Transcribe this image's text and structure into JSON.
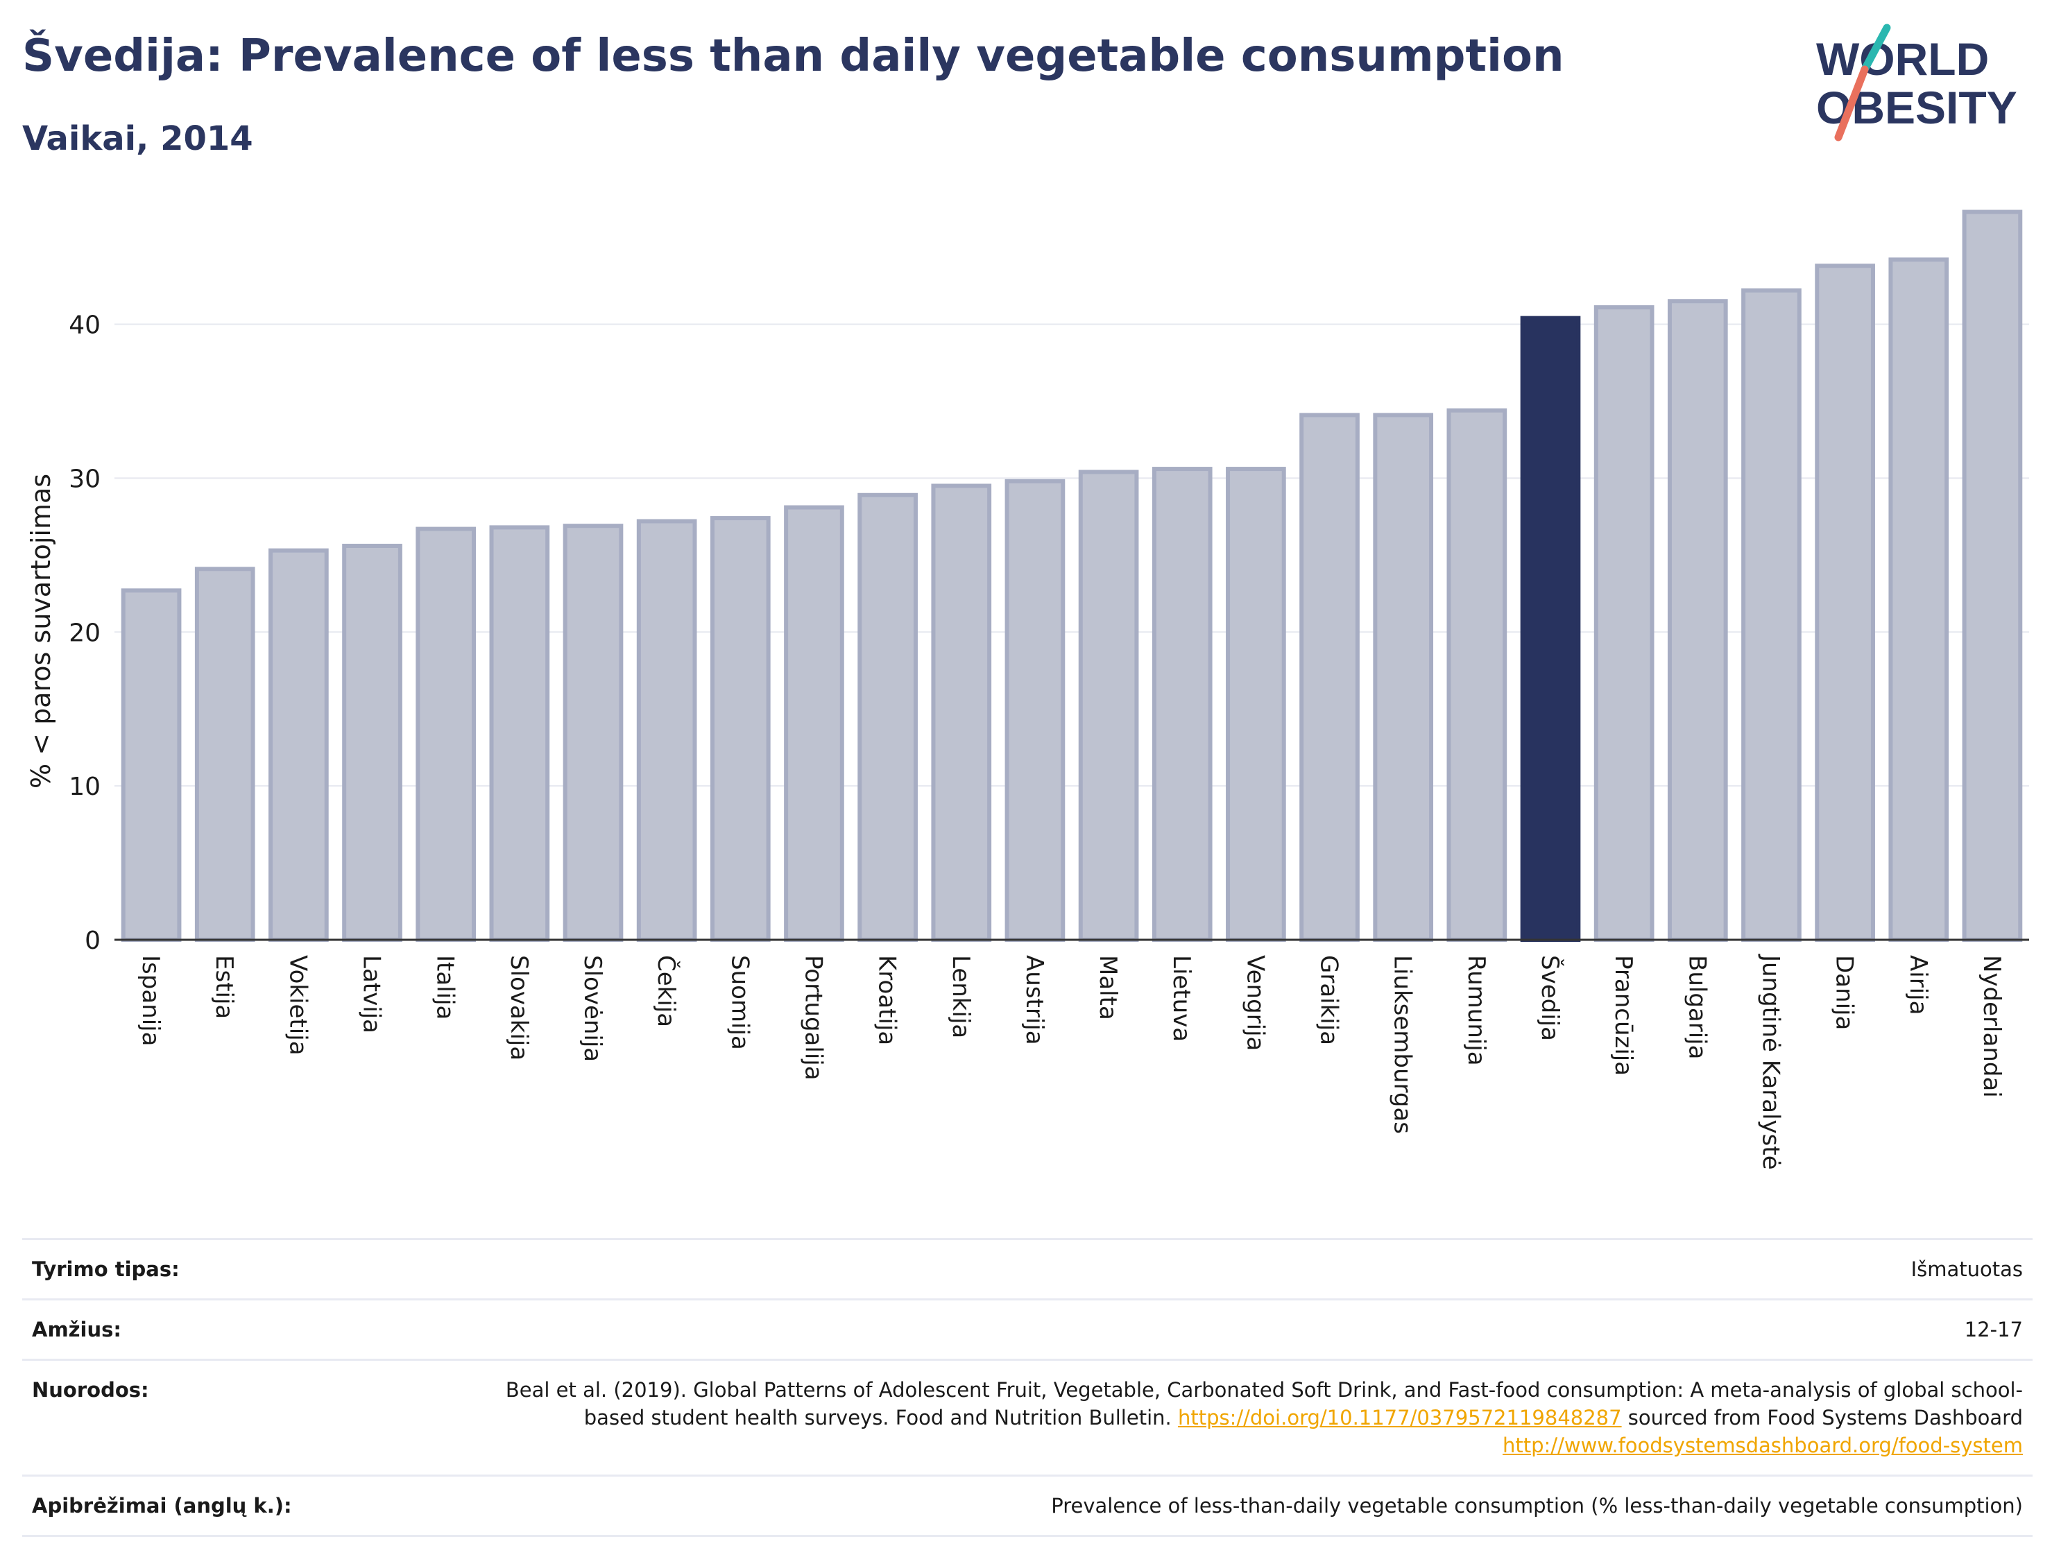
{
  "header": {
    "title": "Švedija: Prevalence of less than daily vegetable consumption",
    "subtitle": "Vaikai, 2014"
  },
  "logo": {
    "line1": "WORLD",
    "line2": "OBESITY"
  },
  "colors": {
    "highlight_bar": "#28335f",
    "other_bar_fill": "#bec2d0",
    "other_bar_stroke": "#a7adc3",
    "accent_teal": "#2ab7b0",
    "accent_coral": "#e9705d",
    "link": "#f0a500"
  },
  "chart_data": {
    "type": "bar",
    "title": "Švedija: Prevalence of less than daily vegetable consumption",
    "subtitle": "Vaikai, 2014",
    "xlabel": "",
    "ylabel": "% < paros suvartojimas",
    "ylim": [
      0,
      48
    ],
    "yticks": [
      0,
      10,
      20,
      30,
      40
    ],
    "grid": true,
    "highlight": "Švedija",
    "categories": [
      "Ispanija",
      "Estija",
      "Vokietija",
      "Latvija",
      "Italija",
      "Slovakija",
      "Slovėnija",
      "Čekija",
      "Suomija",
      "Portugalija",
      "Kroatija",
      "Lenkija",
      "Austrija",
      "Malta",
      "Lietuva",
      "Vengrija",
      "Graikija",
      "Liuksemburgas",
      "Rumunija",
      "Švedija",
      "Prancūzija",
      "Bulgarija",
      "Jungtinė Karalystė",
      "Danija",
      "Airija",
      "Nyderlandai"
    ],
    "values": [
      22.7,
      24.1,
      25.3,
      25.6,
      26.7,
      26.8,
      26.9,
      27.2,
      27.4,
      28.1,
      28.9,
      29.5,
      29.8,
      30.4,
      30.6,
      30.6,
      34.1,
      34.1,
      34.4,
      40.4,
      41.1,
      41.5,
      42.2,
      43.8,
      44.2,
      47.3
    ]
  },
  "info": [
    {
      "label": "Tyrimo tipas:",
      "value": "Išmatuotas"
    },
    {
      "label": "Amžius:",
      "value": "12-17"
    },
    {
      "label": "Nuorodos:",
      "value_part1": "Beal et al. (2019). Global Patterns of Adolescent Fruit, Vegetable, Carbonated Soft Drink, and Fast-food consumption: A meta-analysis of global school-based student health surveys. Food and Nutrition Bulletin.",
      "link1": "https://doi.org/10.1177/0379572119848287",
      "value_part2": "sourced from Food Systems Dashboard",
      "link2": "http://www.foodsystemsdashboard.org/food-system"
    },
    {
      "label": "Apibrėžimai (anglų k.):",
      "value": "Prevalence of less-than-daily vegetable consumption (% less-than-daily vegetable consumption)"
    }
  ]
}
